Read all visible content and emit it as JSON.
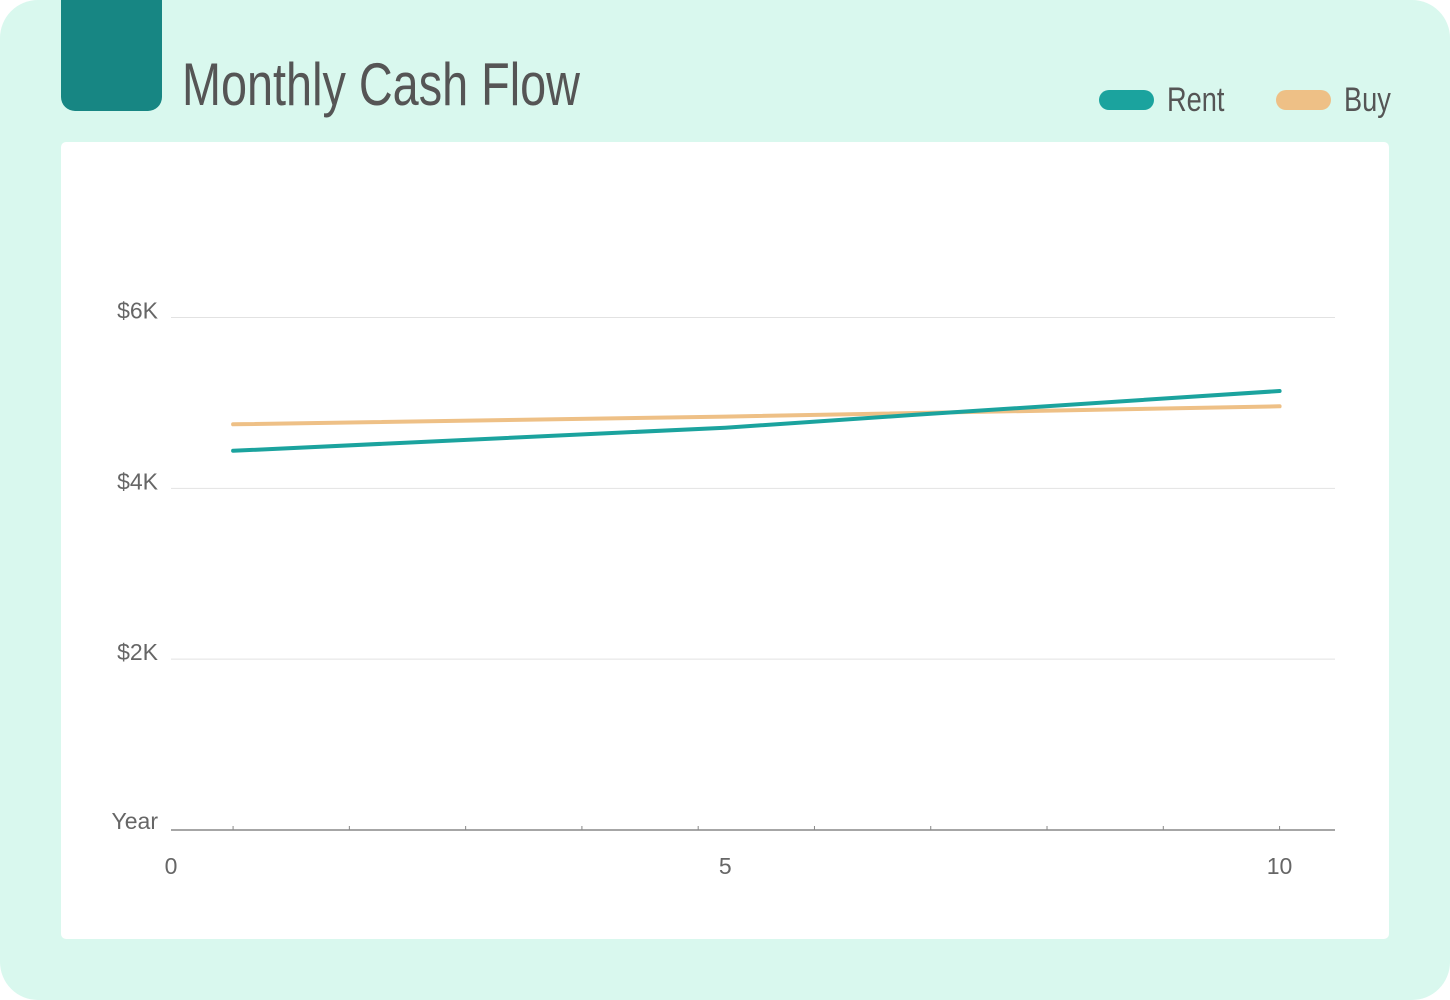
{
  "title": "Monthly Cash Flow",
  "colors": {
    "background": "#d9f8ee",
    "accent": "#178683",
    "rent": "#1ba39e",
    "buy": "#eec086",
    "gridline": "#e2e2e2",
    "axis": "#888888"
  },
  "legend": {
    "rent_label": "Rent",
    "buy_label": "Buy"
  },
  "chart_data": {
    "type": "line",
    "title": "Monthly Cash Flow",
    "xlabel": "Year",
    "ylabel": "",
    "xlim": [
      0,
      10.5
    ],
    "ylim": [
      0,
      7200
    ],
    "x_ticks": [
      0,
      5,
      10
    ],
    "x_tick_labels": [
      "0",
      "5",
      "10"
    ],
    "y_ticks": [
      2000,
      4000,
      6000
    ],
    "y_tick_labels": [
      "$2K",
      "$4K",
      "$6K"
    ],
    "grid": true,
    "legend_position": "top-right",
    "series": [
      {
        "name": "Rent",
        "x": [
          0.56,
          5,
          6.7,
          10
        ],
        "values": [
          4440,
          4710,
          4860,
          5140
        ]
      },
      {
        "name": "Buy",
        "x": [
          0.56,
          5,
          10
        ],
        "values": [
          4750,
          4840,
          4960
        ]
      }
    ]
  }
}
